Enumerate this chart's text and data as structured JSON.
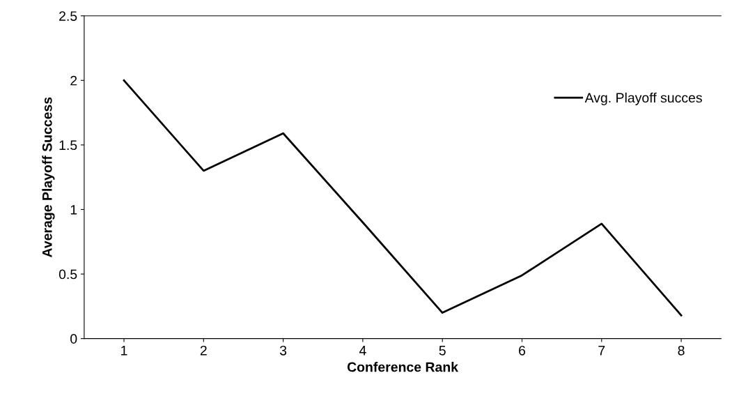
{
  "chart_data": {
    "type": "line",
    "xlabel": "Conference Rank",
    "ylabel": "Average Playoff Success",
    "categories": [
      "1",
      "2",
      "3",
      "4",
      "5",
      "6",
      "7",
      "8"
    ],
    "series": [
      {
        "name": "Avg. Playoff succes",
        "color": "#000000",
        "values": [
          2.0,
          1.3,
          1.59,
          0.9,
          0.2,
          0.49,
          0.89,
          0.18
        ]
      }
    ],
    "ylim": [
      0,
      2.5
    ],
    "yticks": [
      0,
      0.5,
      1,
      1.5,
      2,
      2.5
    ],
    "grid": false,
    "legend": "top right",
    "marker": "none",
    "line_style": "solid"
  }
}
